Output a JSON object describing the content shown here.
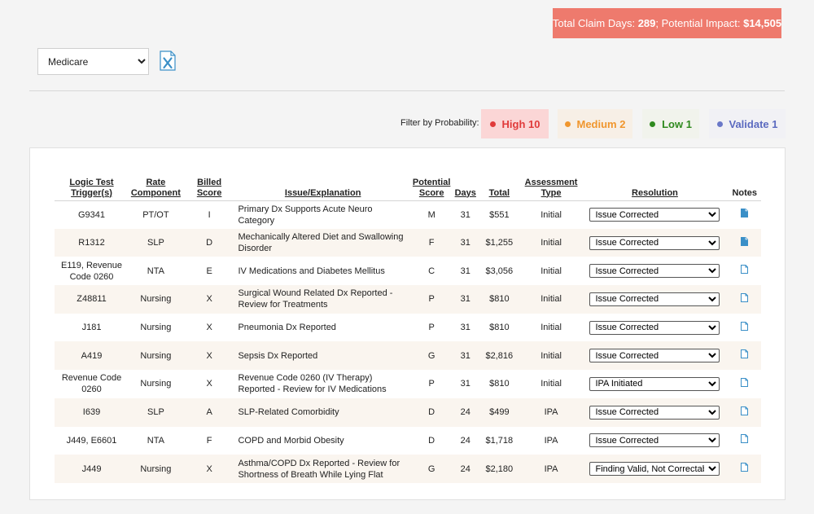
{
  "summary": {
    "days_label": "Total Claim Days:",
    "days_value": "289",
    "sep": ";",
    "impact_label": "Potential Impact:",
    "impact_value": "$14,505"
  },
  "payer_select": {
    "value": "Medicare",
    "options": [
      "Medicare"
    ]
  },
  "export_icon": "excel-x-icon",
  "filter": {
    "label": "Filter by Probability:",
    "chips": [
      {
        "label": "High",
        "count": "10",
        "color": "#e03a3a"
      },
      {
        "label": "Medium",
        "count": "2",
        "color": "#f0962e"
      },
      {
        "label": "Low",
        "count": "1",
        "color": "#2f8a1f"
      },
      {
        "label": "Validate",
        "count": "1",
        "color": "#5b6ac0"
      }
    ]
  },
  "table": {
    "headers": {
      "trigger": [
        "Logic Test",
        "Trigger(s)"
      ],
      "rate": [
        "Rate",
        "Component"
      ],
      "billed": [
        "Billed",
        "Score"
      ],
      "issue": "Issue/Explanation",
      "potential": [
        "Potential",
        "Score"
      ],
      "days": "Days",
      "total": "Total",
      "assessment": [
        "Assessment",
        "Type"
      ],
      "resolution": "Resolution",
      "notes": "Notes"
    },
    "rows": [
      {
        "trigger": "G9341",
        "rate": "PT/OT",
        "billed": "I",
        "issue": "Primary Dx Supports Acute Neuro Category",
        "potential": "M",
        "days": "31",
        "total": "$551",
        "assessment": "Initial",
        "resolution": "Issue Corrected",
        "note": "filled"
      },
      {
        "trigger": "R1312",
        "rate": "SLP",
        "billed": "D",
        "issue": "Mechanically Altered Diet and Swallowing Disorder",
        "potential": "F",
        "days": "31",
        "total": "$1,255",
        "assessment": "Initial",
        "resolution": "Issue Corrected",
        "note": "filled"
      },
      {
        "trigger": "E119, Revenue Code 0260",
        "rate": "NTA",
        "billed": "E",
        "issue": "IV Medications and Diabetes Mellitus",
        "potential": "C",
        "days": "31",
        "total": "$3,056",
        "assessment": "Initial",
        "resolution": "Issue Corrected",
        "note": "empty"
      },
      {
        "trigger": "Z48811",
        "rate": "Nursing",
        "billed": "X",
        "issue": "Surgical Wound Related Dx Reported - Review for Treatments",
        "potential": "P",
        "days": "31",
        "total": "$810",
        "assessment": "Initial",
        "resolution": "Issue Corrected",
        "note": "empty"
      },
      {
        "trigger": "J181",
        "rate": "Nursing",
        "billed": "X",
        "issue": "Pneumonia Dx Reported",
        "potential": "P",
        "days": "31",
        "total": "$810",
        "assessment": "Initial",
        "resolution": "Issue Corrected",
        "note": "empty"
      },
      {
        "trigger": "A419",
        "rate": "Nursing",
        "billed": "X",
        "issue": "Sepsis Dx Reported",
        "potential": "G",
        "days": "31",
        "total": "$2,816",
        "assessment": "Initial",
        "resolution": "Issue Corrected",
        "note": "empty"
      },
      {
        "trigger": "Revenue Code 0260",
        "rate": "Nursing",
        "billed": "X",
        "issue": "Revenue Code 0260 (IV Therapy) Reported - Review for IV Medications",
        "potential": "P",
        "days": "31",
        "total": "$810",
        "assessment": "Initial",
        "resolution": "IPA Initiated",
        "note": "empty"
      },
      {
        "trigger": "I639",
        "rate": "SLP",
        "billed": "A",
        "issue": "SLP-Related Comorbidity",
        "potential": "D",
        "days": "24",
        "total": "$499",
        "assessment": "IPA",
        "resolution": "Issue Corrected",
        "note": "empty"
      },
      {
        "trigger": "J449, E6601",
        "rate": "NTA",
        "billed": "F",
        "issue": "COPD and Morbid Obesity",
        "potential": "D",
        "days": "24",
        "total": "$1,718",
        "assessment": "IPA",
        "resolution": "Issue Corrected",
        "note": "empty"
      },
      {
        "trigger": "J449",
        "rate": "Nursing",
        "billed": "X",
        "issue": "Asthma/COPD Dx Reported - Review for Shortness of Breath While Lying Flat",
        "potential": "G",
        "days": "24",
        "total": "$2,180",
        "assessment": "IPA",
        "resolution": "Finding Valid, Not Correctable",
        "note": "empty"
      }
    ]
  }
}
